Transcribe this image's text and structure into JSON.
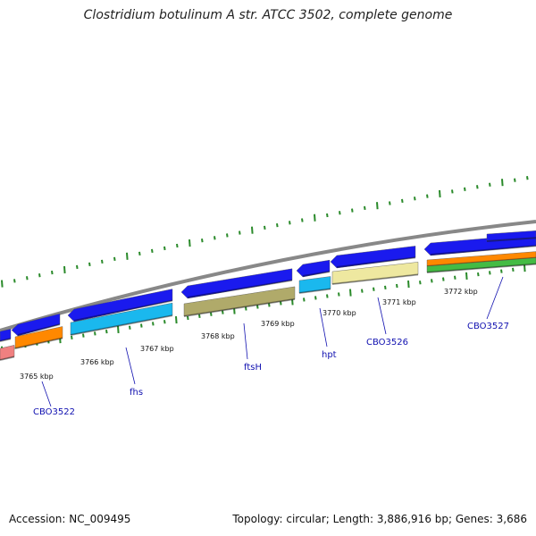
{
  "title": "Clostridium botulinum A str. ATCC 3502, complete genome",
  "footer": {
    "accession": "Accession: NC_009495",
    "summary": "Topology: circular; Length: 3,886,916 bp; Genes: 3,686"
  },
  "colors": {
    "backbone": "#888888",
    "forward": "#1a1aee",
    "gc_ticks": "#2a8a2a",
    "label": "#1010b0"
  },
  "ticks": [
    "3765 kbp",
    "3766 kbp",
    "3767 kbp",
    "3768 kbp",
    "3769 kbp",
    "3770 kbp",
    "3771 kbp",
    "3772 kbp"
  ],
  "gene_labels": [
    "CBO3522",
    "fhs",
    "ftsH",
    "hpt",
    "CBO3526",
    "CBO3527"
  ],
  "features": [
    {
      "name": "cds-1",
      "color": "#1a1aee"
    },
    {
      "name": "cds-2",
      "color": "#1a1aee"
    },
    {
      "name": "cds-3",
      "color": "#1a1aee"
    },
    {
      "name": "cds-4",
      "color": "#1a1aee"
    },
    {
      "name": "cds-5",
      "color": "#1a1aee"
    },
    {
      "name": "cds-6",
      "color": "#1a1aee"
    },
    {
      "name": "cds-7",
      "color": "#1a1aee"
    },
    {
      "name": "cds-8",
      "color": "#1a1aee"
    },
    {
      "name": "gene-pink",
      "color": "#f08080"
    },
    {
      "name": "gene-orange",
      "color": "#ff8800"
    },
    {
      "name": "gene-fhs",
      "color": "#1ab8ee"
    },
    {
      "name": "gene-ftsH",
      "color": "#b0aa6a"
    },
    {
      "name": "gene-hpt",
      "color": "#1ab8ee"
    },
    {
      "name": "gene-CBO3526",
      "color": "#eee8a0"
    },
    {
      "name": "gene-CBO3527-a",
      "color": "#ff8800"
    },
    {
      "name": "gene-CBO3527-b",
      "color": "#44bb44"
    }
  ]
}
